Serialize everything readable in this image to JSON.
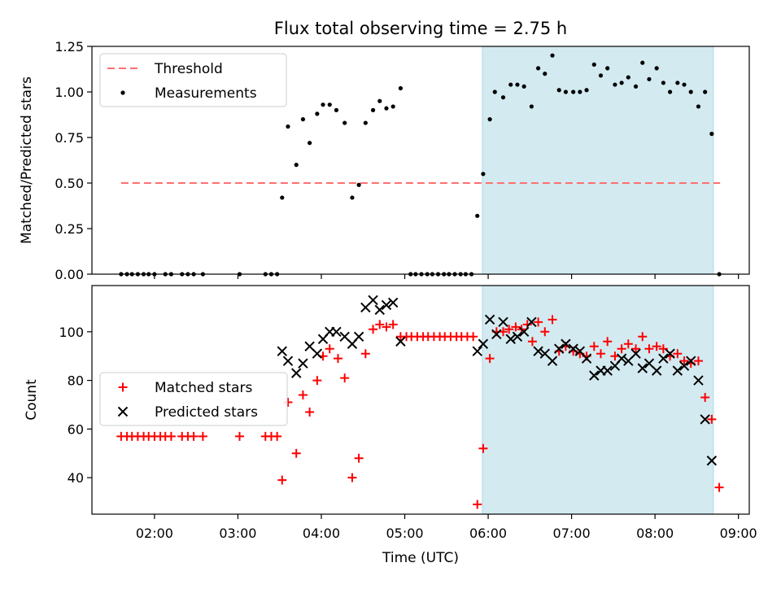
{
  "figure": {
    "title": "Flux total observing time = 2.75 h",
    "xlabel": "Time (UTC)",
    "xtick_labels": [
      "02:00",
      "03:00",
      "04:00",
      "05:00",
      "06:00",
      "07:00",
      "08:00",
      "09:00"
    ],
    "shaded_region_color": "#d3eaf1",
    "shaded_region_border": "#aed8e6"
  },
  "chart_data": [
    {
      "type": "scatter",
      "panel": "top",
      "ylabel": "Matched/Predicted stars",
      "xlim": [
        1.25,
        9.13
      ],
      "ylim": [
        0,
        1.25
      ],
      "yticks": [
        0,
        0.25,
        0.5,
        0.75,
        1.0,
        1.25
      ],
      "ytick_labels": [
        "0.00",
        "0.25",
        "0.50",
        "0.75",
        "1.00",
        "1.25"
      ],
      "xticks": [
        2,
        3,
        4,
        5,
        6,
        7,
        8,
        9
      ],
      "shaded_x": [
        5.93,
        8.7
      ],
      "legend": {
        "position": "upper-left",
        "entries": [
          "Threshold",
          "Measurements"
        ]
      },
      "series": [
        {
          "name": "Threshold",
          "kind": "line",
          "style": "dashed",
          "color": "#ff7070",
          "x": [
            1.6,
            8.78
          ],
          "y": [
            0.5,
            0.5
          ]
        },
        {
          "name": "Measurements",
          "kind": "dot",
          "color": "#000000",
          "x": [
            1.6,
            1.67,
            1.73,
            1.8,
            1.87,
            1.93,
            2.0,
            2.13,
            2.2,
            2.33,
            2.4,
            2.47,
            2.58,
            3.02,
            3.33,
            3.4,
            3.47,
            3.53,
            3.6,
            3.7,
            3.78,
            3.86,
            3.95,
            4.02,
            4.1,
            4.18,
            4.28,
            4.37,
            4.45,
            4.53,
            4.62,
            4.7,
            4.78,
            4.86,
            4.95,
            5.07,
            5.13,
            5.2,
            5.27,
            5.33,
            5.4,
            5.47,
            5.53,
            5.6,
            5.67,
            5.73,
            5.8,
            5.87,
            5.94,
            6.02,
            6.08,
            6.18,
            6.27,
            6.35,
            6.43,
            6.52,
            6.6,
            6.68,
            6.77,
            6.85,
            6.93,
            7.02,
            7.1,
            7.18,
            7.27,
            7.35,
            7.43,
            7.52,
            7.6,
            7.68,
            7.77,
            7.85,
            7.93,
            8.02,
            8.1,
            8.18,
            8.27,
            8.35,
            8.43,
            8.52,
            8.6,
            8.68,
            8.77
          ],
          "y": [
            0,
            0,
            0,
            0,
            0,
            0,
            0,
            0,
            0,
            0,
            0,
            0,
            0,
            0,
            0,
            0,
            0,
            0.42,
            0.81,
            0.6,
            0.85,
            0.72,
            0.88,
            0.93,
            0.93,
            0.9,
            0.83,
            0.42,
            0.49,
            0.83,
            0.9,
            0.95,
            0.91,
            0.92,
            1.02,
            0,
            0,
            0,
            0,
            0,
            0,
            0,
            0,
            0,
            0,
            0,
            0,
            0.32,
            0.55,
            0.85,
            1.0,
            0.97,
            1.04,
            1.04,
            1.03,
            0.92,
            1.13,
            1.1,
            1.2,
            1.01,
            1.0,
            1.0,
            1.0,
            1.01,
            1.15,
            1.09,
            1.13,
            1.04,
            1.05,
            1.08,
            1.03,
            1.16,
            1.07,
            1.13,
            1.05,
            1.0,
            1.05,
            1.04,
            1.0,
            0.92,
            1.0,
            0.77,
            0
          ]
        }
      ]
    },
    {
      "type": "scatter",
      "panel": "bottom",
      "ylabel": "Count",
      "xlim": [
        1.25,
        9.13
      ],
      "ylim": [
        25,
        119
      ],
      "yticks": [
        40,
        60,
        80,
        100
      ],
      "ytick_labels": [
        "40",
        "60",
        "80",
        "100"
      ],
      "xticks": [
        2,
        3,
        4,
        5,
        6,
        7,
        8,
        9
      ],
      "shaded_x": [
        5.93,
        8.7
      ],
      "legend": {
        "position": "center-left",
        "entries": [
          "Matched stars",
          "Predicted stars"
        ]
      },
      "series": [
        {
          "name": "Matched stars",
          "kind": "plus",
          "color": "#ff0000",
          "x": [
            1.6,
            1.67,
            1.73,
            1.8,
            1.87,
            1.93,
            2.0,
            2.07,
            2.13,
            2.2,
            2.33,
            2.4,
            2.47,
            2.58,
            3.02,
            3.33,
            3.4,
            3.47,
            3.53,
            3.6,
            3.7,
            3.78,
            3.86,
            3.95,
            4.02,
            4.1,
            4.2,
            4.28,
            4.37,
            4.45,
            4.53,
            4.62,
            4.7,
            4.78,
            4.86,
            4.95,
            5.02,
            5.08,
            5.15,
            5.22,
            5.28,
            5.35,
            5.42,
            5.48,
            5.55,
            5.62,
            5.68,
            5.75,
            5.82,
            5.87,
            5.94,
            6.02,
            6.1,
            6.18,
            6.25,
            6.33,
            6.4,
            6.47,
            6.53,
            6.6,
            6.68,
            6.77,
            6.85,
            6.93,
            7.02,
            7.1,
            7.18,
            7.27,
            7.35,
            7.43,
            7.52,
            7.6,
            7.68,
            7.77,
            7.85,
            7.93,
            8.02,
            8.1,
            8.18,
            8.27,
            8.35,
            8.43,
            8.52,
            8.6,
            8.68,
            8.77
          ],
          "y": [
            57,
            57,
            57,
            57,
            57,
            57,
            57,
            57,
            57,
            57,
            57,
            57,
            57,
            57,
            57,
            57,
            57,
            57,
            39,
            71,
            50,
            74,
            67,
            80,
            90,
            93,
            89,
            81,
            40,
            48,
            91,
            101,
            103,
            102,
            103,
            98,
            98,
            98,
            98,
            98,
            98,
            98,
            98,
            98,
            98,
            98,
            98,
            98,
            98,
            29,
            52,
            89,
            100,
            100,
            101,
            102,
            101,
            103,
            96,
            104,
            100,
            105,
            92,
            94,
            92,
            91,
            90,
            94,
            91,
            96,
            90,
            93,
            95,
            93,
            98,
            93,
            94,
            93,
            90,
            91,
            88,
            87,
            88,
            73,
            64,
            36
          ]
        },
        {
          "name": "Predicted stars",
          "kind": "cross",
          "color": "#000000",
          "x": [
            3.53,
            3.6,
            3.7,
            3.78,
            3.86,
            3.95,
            4.02,
            4.1,
            4.18,
            4.28,
            4.37,
            4.45,
            4.53,
            4.62,
            4.7,
            4.78,
            4.86,
            4.95,
            5.87,
            5.94,
            6.02,
            6.1,
            6.18,
            6.27,
            6.35,
            6.43,
            6.52,
            6.6,
            6.68,
            6.77,
            6.85,
            6.93,
            7.02,
            7.1,
            7.18,
            7.27,
            7.35,
            7.43,
            7.52,
            7.6,
            7.68,
            7.77,
            7.85,
            7.93,
            8.02,
            8.1,
            8.18,
            8.27,
            8.35,
            8.43,
            8.52,
            8.6,
            8.68
          ],
          "y": [
            92,
            88,
            83,
            87,
            94,
            91,
            97,
            100,
            100,
            98,
            95,
            98,
            110,
            113,
            109,
            111,
            112,
            96,
            92,
            95,
            105,
            99,
            104,
            97,
            98,
            100,
            104,
            92,
            91,
            88,
            93,
            95,
            93,
            92,
            89,
            82,
            84,
            84,
            86,
            89,
            88,
            91,
            85,
            87,
            84,
            89,
            91,
            84,
            86,
            88,
            80,
            64,
            47
          ]
        }
      ]
    }
  ]
}
